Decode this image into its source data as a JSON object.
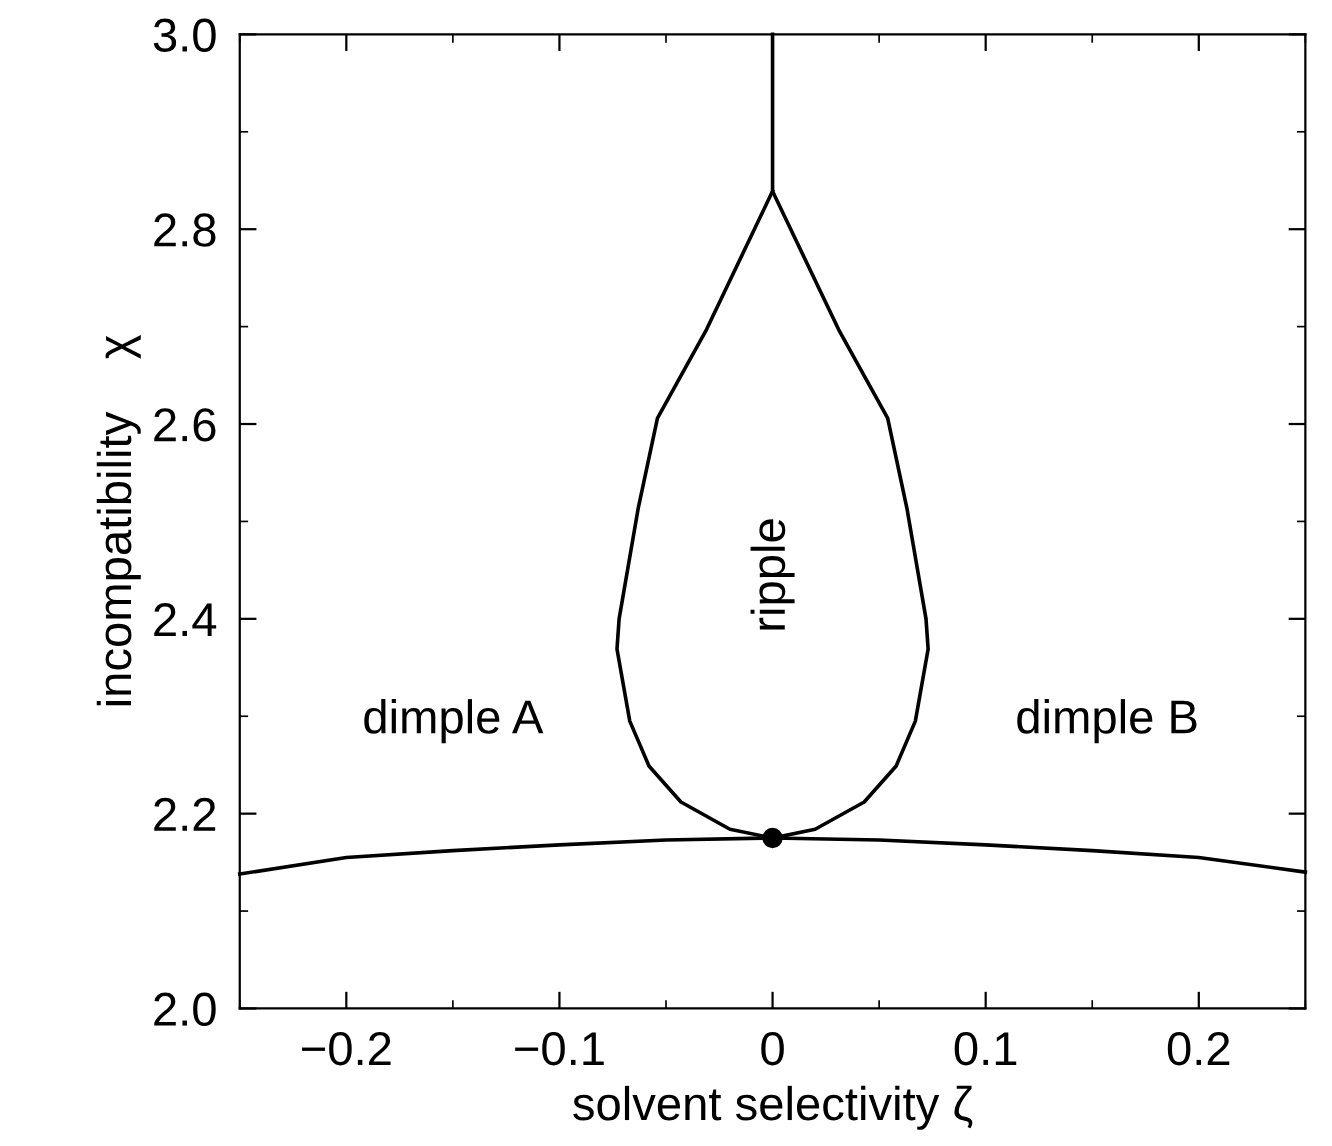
{
  "chart_data": {
    "type": "line",
    "xlabel": "solvent selectivity ζ",
    "ylabel": "incompatibility    χ",
    "xlim": [
      -0.25,
      0.25
    ],
    "ylim": [
      2.0,
      3.0
    ],
    "xticks": [
      {
        "value": -0.2,
        "label": "−0.2"
      },
      {
        "value": -0.1,
        "label": "−0.1"
      },
      0,
      0.1,
      0.2
    ],
    "yticks": [
      {
        "value": 2.0,
        "label": "2.0"
      },
      {
        "value": 2.2,
        "label": "2.2"
      },
      {
        "value": 2.4,
        "label": "2.4"
      },
      {
        "value": 2.6,
        "label": "2.6"
      },
      {
        "value": 2.8,
        "label": "2.8"
      },
      {
        "value": 3.0,
        "label": "3.0"
      }
    ],
    "grid": false,
    "legend": false,
    "marker": "none",
    "line_style": "solid",
    "series": [
      {
        "color": "#000000",
        "x": [
          -0.25,
          -0.2,
          -0.15,
          -0.1,
          -0.05,
          0,
          0.05,
          0.1,
          0.15,
          0.2,
          0.25
        ],
        "values": [
          2.138,
          2.155,
          2.162,
          2.168,
          2.173,
          2.175,
          2.173,
          2.168,
          2.162,
          2.155,
          2.14
        ]
      },
      {
        "color": "#000000",
        "x": [
          0,
          0.02,
          0.043,
          0.058,
          0.067,
          0.073,
          0.072,
          0.063,
          0.054,
          0.031,
          0,
          0
        ],
        "values": [
          2.175,
          2.184,
          2.212,
          2.249,
          2.295,
          2.369,
          2.4,
          2.514,
          2.606,
          2.697,
          2.839,
          3.0
        ]
      },
      {
        "color": "#000000",
        "x": [
          0,
          -0.02,
          -0.043,
          -0.058,
          -0.067,
          -0.073,
          -0.072,
          -0.063,
          -0.054,
          -0.031,
          0
        ],
        "values": [
          2.175,
          2.184,
          2.212,
          2.249,
          2.295,
          2.369,
          2.4,
          2.514,
          2.606,
          2.697,
          2.839
        ]
      },
      {
        "type": "scatter",
        "marker": "circle",
        "color": "#000000",
        "x": [
          0
        ],
        "values": [
          2.175
        ]
      }
    ],
    "annotations": [
      "dimple A",
      "dimple B",
      "ripple"
    ]
  }
}
